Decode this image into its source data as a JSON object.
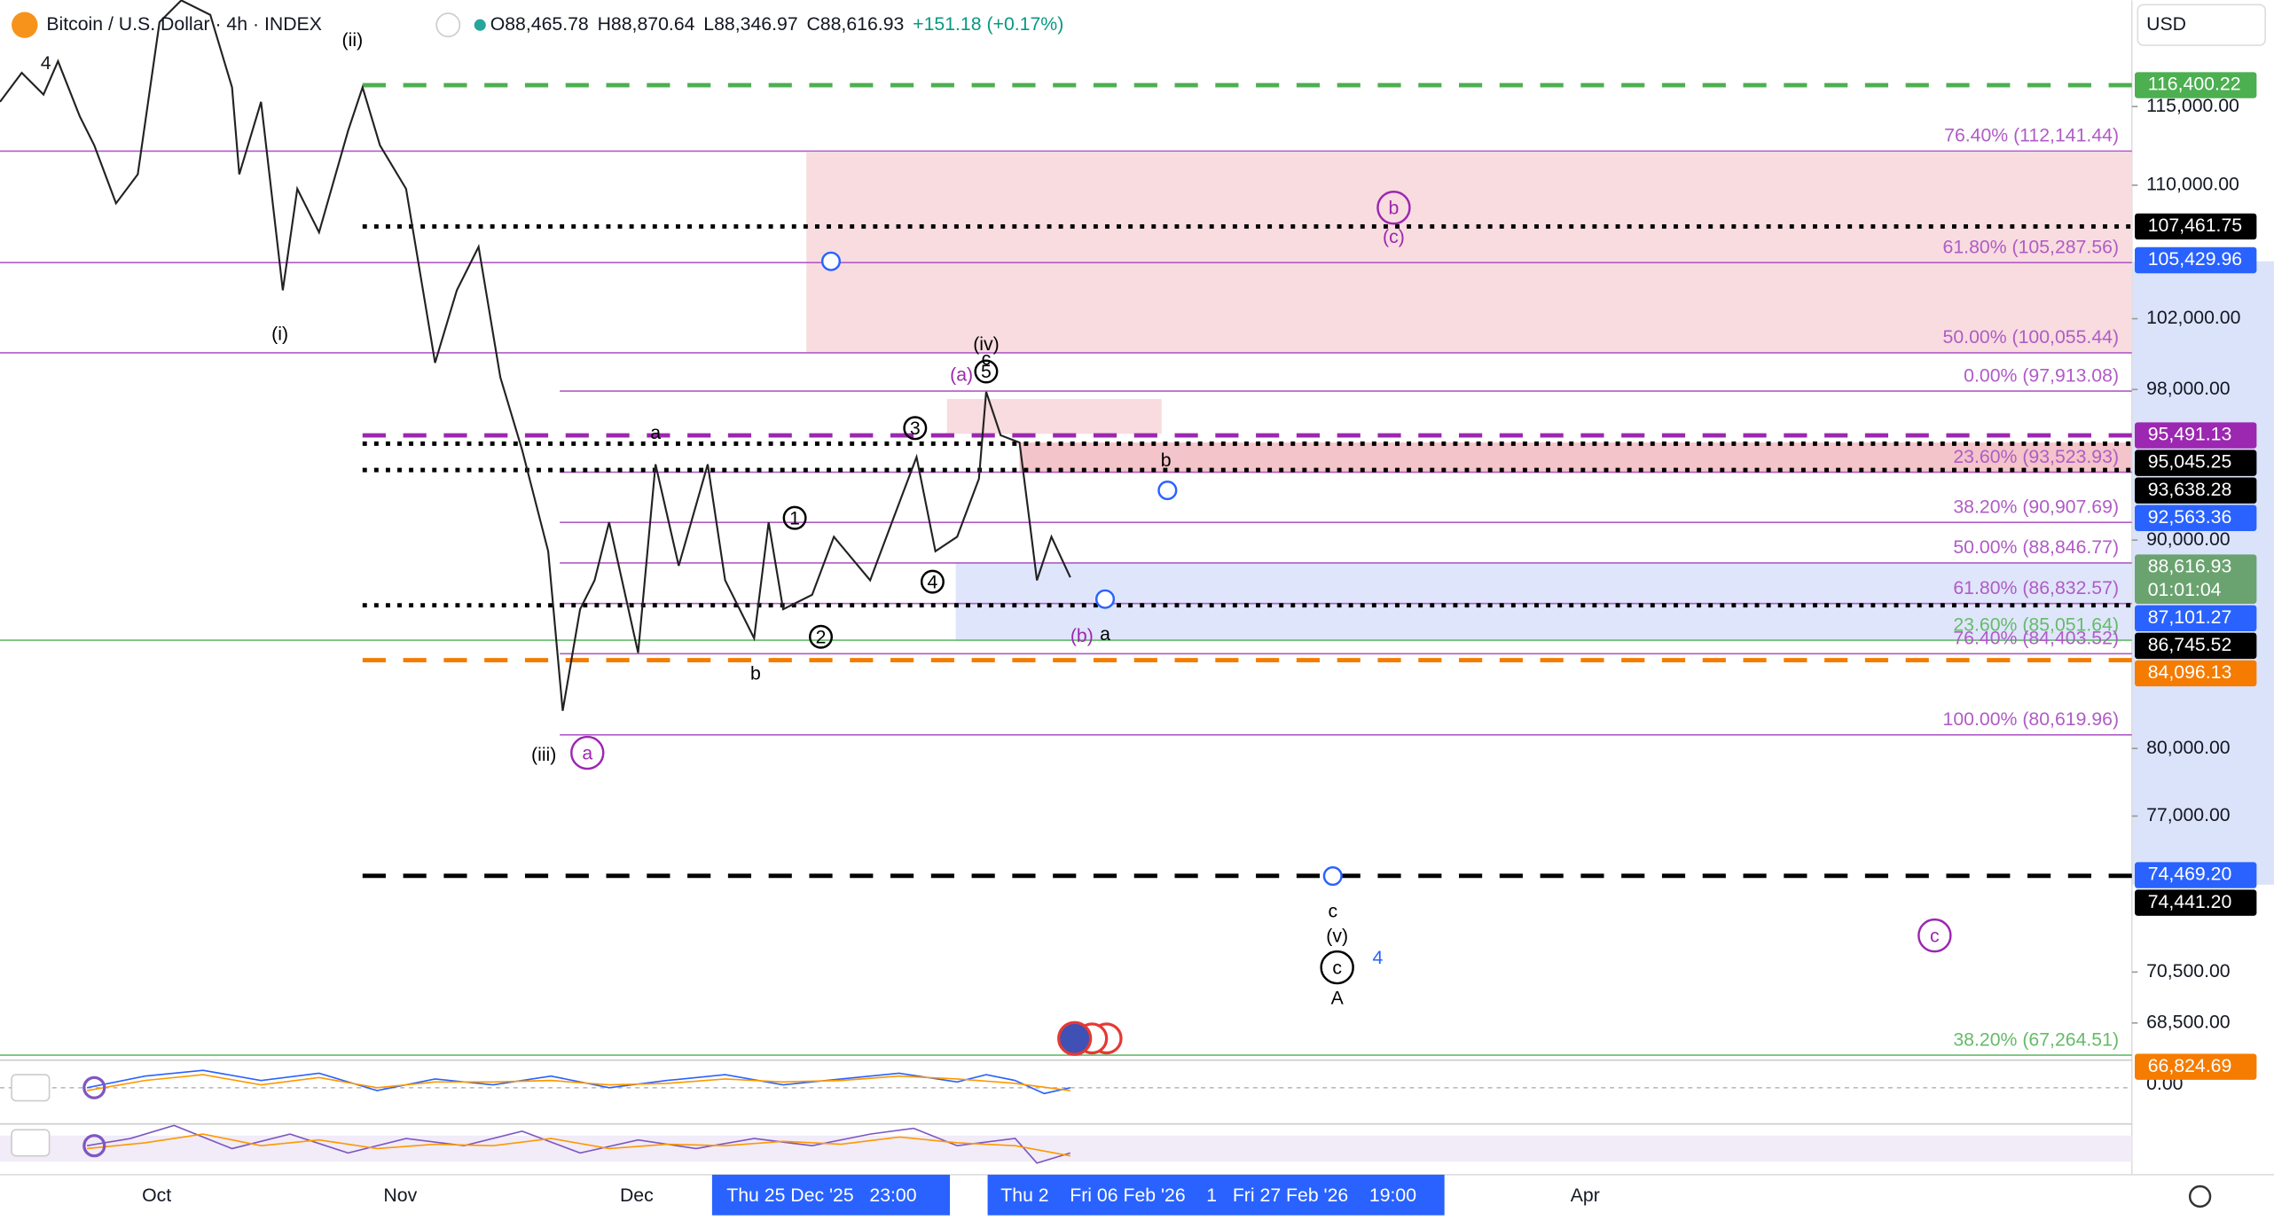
{
  "header": {
    "symbol": "Bitcoin / U.S. Dollar · 4h · INDEX",
    "open": "O88,465.78",
    "high": "H88,870.64",
    "low": "L88,346.97",
    "close": "C88,616.93",
    "change": "+151.18 (+0.17%)",
    "indicators": "4",
    "currency": "USD"
  },
  "price_axis": {
    "scale": "log",
    "ticks": [
      {
        "value": 115000,
        "label": "115,000.00"
      },
      {
        "value": 110000,
        "label": "110,000.00"
      },
      {
        "value": 102000,
        "label": "102,000.00"
      },
      {
        "value": 98000,
        "label": "98,000.00"
      },
      {
        "value": 90000,
        "label": "90,000.00"
      },
      {
        "value": 80000,
        "label": "80,000.00"
      },
      {
        "value": 77000,
        "label": "77,000.00"
      },
      {
        "value": 70500,
        "label": "70,500.00"
      },
      {
        "value": 68500,
        "label": "68,500.00"
      }
    ],
    "badges": [
      {
        "value": 116400.22,
        "label": "116,400.22",
        "color": "#4caf50",
        "line": "dashed"
      },
      {
        "value": 107461.75,
        "label": "107,461.75",
        "color": "#000000",
        "line": "dotted"
      },
      {
        "value": 105429.96,
        "label": "105,429.96",
        "color": "#2962ff"
      },
      {
        "value": 95491.13,
        "label": "95,491.13",
        "color": "#9c27b0",
        "line": "dashed"
      },
      {
        "value": 95045.25,
        "label": "95,045.25",
        "color": "#000000",
        "line": "dotted"
      },
      {
        "value": 93638.28,
        "label": "93,638.28",
        "color": "#000000",
        "line": "dotted"
      },
      {
        "value": 92563.36,
        "label": "92,563.36",
        "color": "#2962ff"
      },
      {
        "value": 88616.93,
        "label": "88,616.93",
        "color": "#6aa36f",
        "timer": "01:01:04"
      },
      {
        "value": 87101.27,
        "label": "87,101.27",
        "color": "#2962ff"
      },
      {
        "value": 86745.52,
        "label": "86,745.52",
        "color": "#000000",
        "line": "dotted"
      },
      {
        "value": 84096.13,
        "label": "84,096.13",
        "color": "#f57c00",
        "line": "dashed"
      },
      {
        "value": 74469.2,
        "label": "74,469.20",
        "color": "#2962ff"
      },
      {
        "value": 74441.2,
        "label": "74,441.20",
        "color": "#000000",
        "line": "dashed"
      },
      {
        "value": 66824.69,
        "label": "66,824.69",
        "color": "#f57c00"
      }
    ],
    "oscillator_label": "0.00"
  },
  "fib_levels": [
    {
      "label": "76.40% (112,141.44)",
      "value": 112141.44
    },
    {
      "label": "61.80% (105,287.56)",
      "value": 105287.56
    },
    {
      "label": "50.00% (100,055.44)",
      "value": 100055.44
    },
    {
      "label": "0.00% (97,913.08)",
      "value": 97913.08
    },
    {
      "label": "23.60% (93,523.93)",
      "value": 93523.93
    },
    {
      "label": "38.20% (90,907.69)",
      "value": 90907.69
    },
    {
      "label": "50.00% (88,846.77)",
      "value": 88846.77
    },
    {
      "label": "61.80% (86,832.57)",
      "value": 86832.57
    },
    {
      "label": "23.60% (85,051.64)",
      "value": 85051.64,
      "color": "#66bb6a"
    },
    {
      "label": "76.40% (84,403.52)",
      "value": 84403.52
    },
    {
      "label": "100.00% (80,619.96)",
      "value": 80619.96
    },
    {
      "label": "38.20% (67,264.51)",
      "value": 67264.51,
      "color": "#66bb6a"
    }
  ],
  "wave_labels": [
    "(ii)",
    "(i)",
    "a",
    "b",
    "(iii)",
    "a",
    "1",
    "2",
    "3",
    "4",
    "5",
    "(iv)",
    "c",
    "(a)",
    "b",
    "(c)",
    "b",
    "(b)",
    "a",
    "c",
    "(v)",
    "c",
    "A",
    "4",
    "c"
  ],
  "time_axis": {
    "labels": [
      "Oct",
      "Nov",
      "Dec",
      "Apr"
    ],
    "highlight_1": "Thu 25 Dec '25   23:00",
    "highlight_2": "Thu 2    Fri 06 Feb '26    1   Fri 27 Feb '26    19:00"
  }
}
